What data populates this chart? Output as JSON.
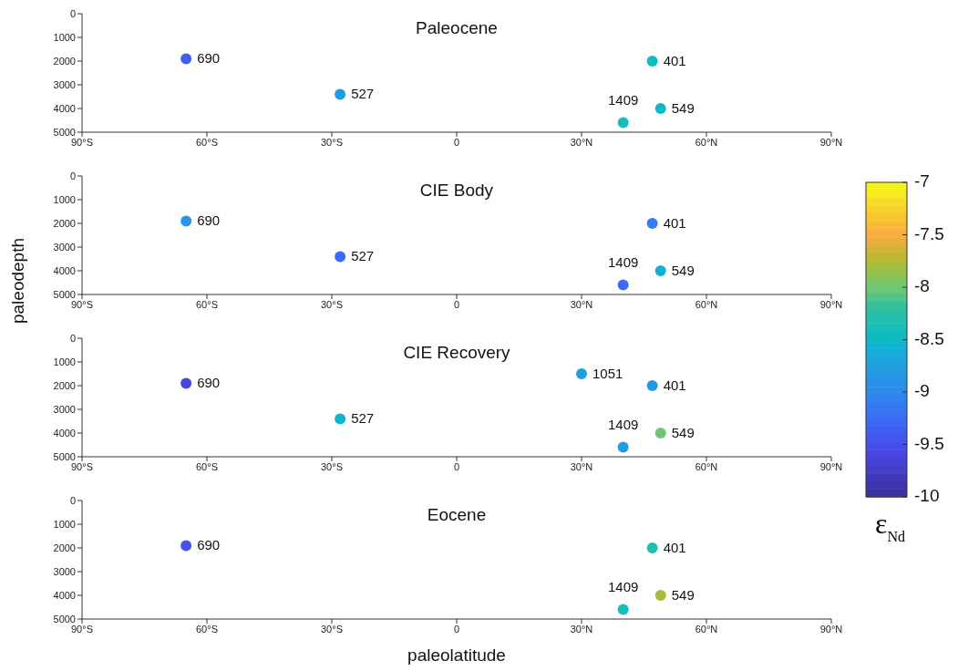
{
  "chart_data": [
    {
      "type": "scatter",
      "title": "Paleocene",
      "clabel": "ε$_{Nd}$",
      "clim": [
        -10,
        -7
      ],
      "cticks": [
        -10,
        -9.5,
        -9,
        -8.5,
        -8,
        -7.5,
        -7
      ],
      "marker": "circle",
      "grid": false,
      "legend": false,
      "x": [
        -65,
        -28,
        47,
        40,
        49
      ],
      "values": [
        1900,
        3400,
        2000,
        4600,
        4000
      ],
      "cvalues": [
        -9.35,
        -8.8,
        -8.45,
        -8.4,
        -8.5
      ],
      "xlim": [
        -90,
        90
      ],
      "xticks": [
        {
          "value": -90,
          "label": "90°S"
        },
        {
          "value": -60,
          "label": "60°S"
        },
        {
          "value": -30,
          "label": "30°S"
        },
        {
          "value": 0,
          "label": "0"
        },
        {
          "value": 30,
          "label": "30°N"
        },
        {
          "value": 60,
          "label": "60°N"
        },
        {
          "value": 90,
          "label": "90°N"
        }
      ],
      "ylim": [
        5000,
        0
      ],
      "yticks": [
        0,
        1000,
        2000,
        3000,
        4000,
        5000
      ],
      "annotations": [
        {
          "text": "690",
          "x": -65,
          "y": 1900
        },
        {
          "text": "527",
          "x": -28,
          "y": 3400
        },
        {
          "text": "401",
          "x": 47,
          "y": 2000
        },
        {
          "text": "1409",
          "x": 40,
          "y": 4600
        },
        {
          "text": "549",
          "x": 49,
          "y": 4000
        }
      ]
    },
    {
      "type": "scatter",
      "title": "CIE Body",
      "ylabel": "paleodepth",
      "marker": "circle",
      "grid": false,
      "legend": false,
      "x": [
        -65,
        -28,
        47,
        40,
        49
      ],
      "values": [
        1900,
        3400,
        2000,
        4600,
        4000
      ],
      "colors": [
        "#2597e4",
        "#3b6cf8",
        "#337df0",
        "#3b6cf8",
        "#15aed5"
      ],
      "xlim": [
        -90,
        90
      ],
      "xticks": [
        {
          "value": -90,
          "label": "90°S"
        },
        {
          "value": -60,
          "label": "60°S"
        },
        {
          "value": -30,
          "label": "30°S"
        },
        {
          "value": 0,
          "label": "0"
        },
        {
          "value": 30,
          "label": "30°N"
        },
        {
          "value": 60,
          "label": "60°N"
        },
        {
          "value": 90,
          "label": "90°N"
        }
      ],
      "ylim": [
        5000,
        0
      ],
      "yticks": [
        0,
        1000,
        2000,
        3000,
        4000,
        5000
      ],
      "annotations": [
        {
          "text": "690",
          "x": -65,
          "y": 1900
        },
        {
          "text": "527",
          "x": -28,
          "y": 3400
        },
        {
          "text": "401",
          "x": 47,
          "y": 2000
        },
        {
          "text": "1409",
          "x": 40,
          "y": 4600
        },
        {
          "text": "549",
          "x": 49,
          "y": 4000
        }
      ]
    },
    {
      "type": "scatter",
      "title": "CIE Recovery",
      "marker": "circle",
      "grid": false,
      "legend": false,
      "x": [
        -65,
        -28,
        30,
        47,
        40,
        49
      ],
      "values": [
        1900,
        3400,
        1500,
        2000,
        4600,
        4000
      ],
      "colors": [
        "#4745df",
        "#0fb4cf",
        "#229be2",
        "#229be2",
        "#229be2",
        "#6dc872"
      ],
      "xlim": [
        -90,
        90
      ],
      "xticks": [
        {
          "value": -90,
          "label": "90°S"
        },
        {
          "value": -60,
          "label": "60°S"
        },
        {
          "value": -30,
          "label": "30°S"
        },
        {
          "value": 0,
          "label": "0"
        },
        {
          "value": 30,
          "label": "30°N"
        },
        {
          "value": 60,
          "label": "60°N"
        },
        {
          "value": 90,
          "label": "90°N"
        }
      ],
      "ylim": [
        5000,
        0
      ],
      "yticks": [
        0,
        1000,
        2000,
        3000,
        4000,
        5000
      ],
      "annotations": [
        {
          "text": "690",
          "x": -65,
          "y": 1900
        },
        {
          "text": "527",
          "x": -28,
          "y": 3400
        },
        {
          "text": "1051",
          "x": 30,
          "y": 1500
        },
        {
          "text": "401",
          "x": 47,
          "y": 2000
        },
        {
          "text": "1409",
          "x": 40,
          "y": 4600
        },
        {
          "text": "549",
          "x": 49,
          "y": 4000
        }
      ]
    },
    {
      "type": "scatter",
      "title": "Eocene",
      "xlabel": "paleolatitude",
      "marker": "circle",
      "grid": false,
      "legend": false,
      "x": [
        -65,
        47,
        40,
        49
      ],
      "values": [
        1900,
        2000,
        4600,
        4000
      ],
      "colors": [
        "#4454ed",
        "#23bead",
        "#17bcbb",
        "#a5be3b"
      ],
      "xlim": [
        -90,
        90
      ],
      "xticks": [
        {
          "value": -90,
          "label": "90°S"
        },
        {
          "value": -60,
          "label": "60°S"
        },
        {
          "value": -30,
          "label": "30°S"
        },
        {
          "value": 0,
          "label": "0"
        },
        {
          "value": 30,
          "label": "30°N"
        },
        {
          "value": 60,
          "label": "60°N"
        },
        {
          "value": 90,
          "label": "90°N"
        }
      ],
      "ylim": [
        5000,
        0
      ],
      "yticks": [
        0,
        1000,
        2000,
        3000,
        4000,
        5000
      ],
      "annotations": [
        {
          "text": "690",
          "x": -65,
          "y": 1900
        },
        {
          "text": "401",
          "x": 47,
          "y": 2000
        },
        {
          "text": "1409",
          "x": 40,
          "y": 4600
        },
        {
          "text": "549",
          "x": 49,
          "y": 4000
        }
      ]
    }
  ]
}
